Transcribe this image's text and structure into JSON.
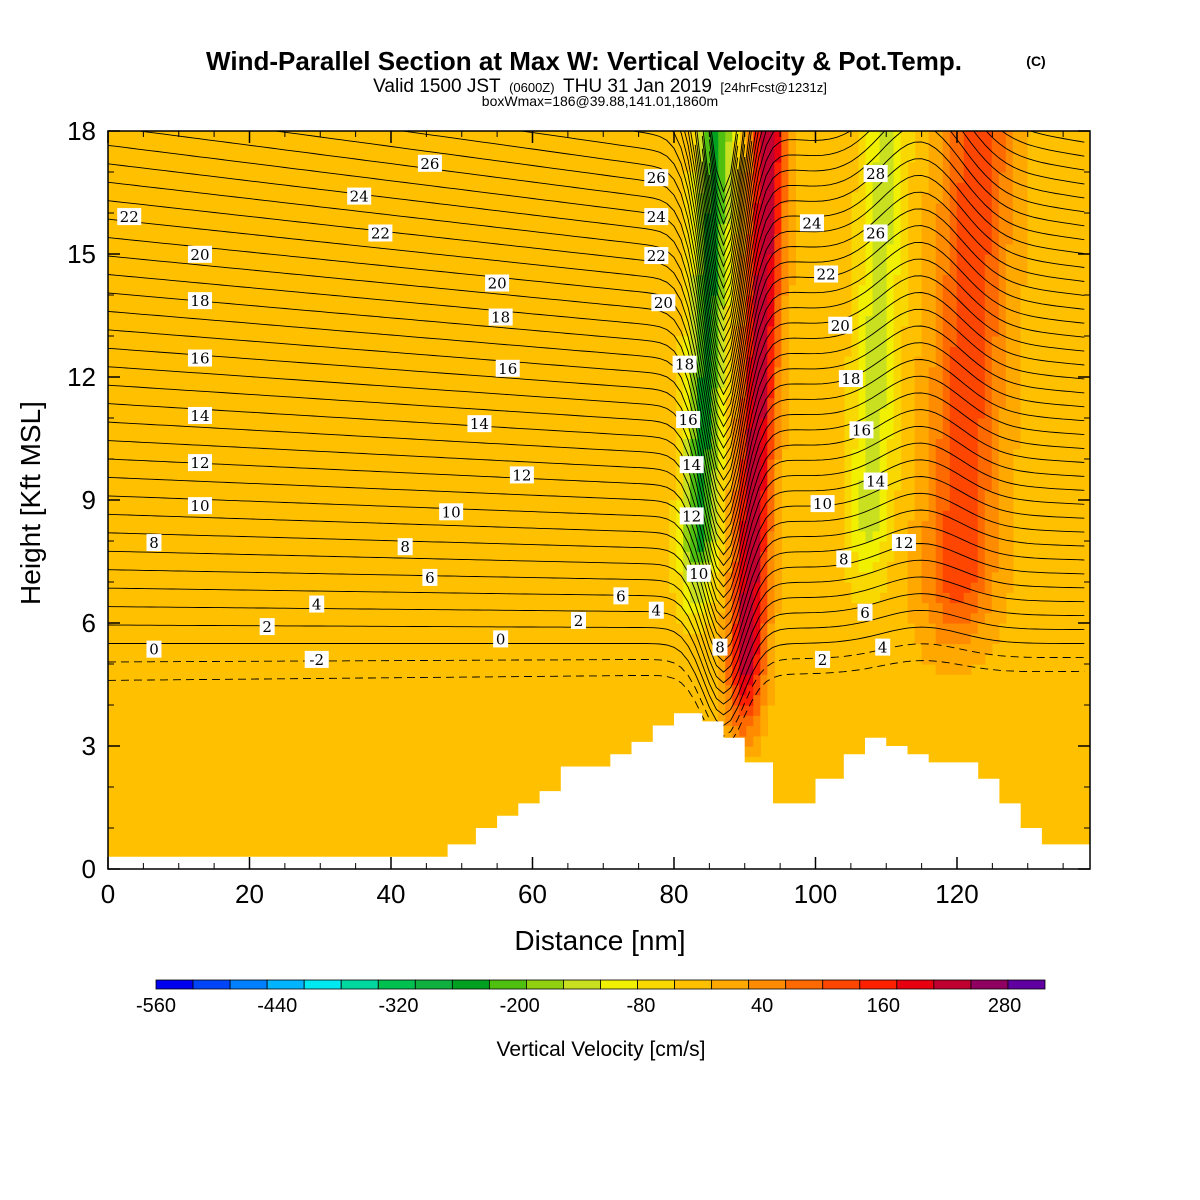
{
  "header": {
    "title": "Wind-Parallel Section at Max W: Vertical Velocity & Pot.Temp.",
    "copyright": "(C)",
    "valid_a": "Valid 1500 JST",
    "valid_utc": "(0600Z)",
    "valid_b": "THU 31 Jan 2019",
    "forecast": "[24hrFcst@1231z]",
    "box": "boxWmax=186@39.88,141.01,1860m"
  },
  "chart_data": {
    "type": "heatmap",
    "xlabel": "Distance [nm]",
    "ylabel": "Height [Kft MSL]",
    "xlim": [
      0,
      138.8
    ],
    "ylim": [
      0,
      18
    ],
    "x_ticks": [
      0,
      20,
      40,
      60,
      80,
      100,
      120
    ],
    "y_ticks": [
      0,
      3,
      6,
      9,
      12,
      15,
      18
    ],
    "colorbar": {
      "title": "Vertical Velocity [cm/s]",
      "tick_labels": [
        "-560",
        "-440",
        "-320",
        "-200",
        "-80",
        "40",
        "160",
        "280"
      ],
      "tick_values": [
        -560,
        -440,
        -320,
        -200,
        -80,
        40,
        160,
        280
      ],
      "min": -560,
      "max": 320,
      "bin_width": 40,
      "colors": [
        "#0000f0",
        "#0046f8",
        "#0080ff",
        "#00b4ff",
        "#00e8f0",
        "#00d8a0",
        "#00c050",
        "#10b040",
        "#00a020",
        "#50c010",
        "#90d010",
        "#c8e020",
        "#f0f000",
        "#f8d800",
        "#ffc000",
        "#ffa800",
        "#ff8c00",
        "#ff6a00",
        "#ff4600",
        "#ff2000",
        "#e80010",
        "#c00030",
        "#900060",
        "#6000a0"
      ]
    },
    "terrain_profile": {
      "distance": [
        0,
        48,
        48,
        52,
        52,
        55,
        55,
        58,
        58,
        61,
        61,
        64,
        64,
        71,
        71,
        74,
        74,
        77,
        77,
        80,
        80,
        84,
        84,
        87,
        87,
        90,
        90,
        94,
        94,
        100,
        100,
        104,
        104,
        107,
        107,
        110,
        110,
        113,
        113,
        116,
        116,
        123,
        123,
        126,
        126,
        129,
        129,
        132,
        132,
        138.8
      ],
      "height": [
        0.3,
        0.3,
        0.6,
        0.6,
        1.0,
        1.0,
        1.3,
        1.3,
        1.6,
        1.6,
        1.9,
        1.9,
        2.5,
        2.5,
        2.8,
        2.8,
        3.1,
        3.1,
        3.5,
        3.5,
        3.8,
        3.8,
        3.6,
        3.6,
        3.2,
        3.2,
        2.6,
        2.6,
        1.6,
        1.6,
        2.2,
        2.2,
        2.8,
        2.8,
        3.2,
        3.2,
        3.0,
        3.0,
        2.8,
        2.8,
        2.6,
        2.6,
        2.2,
        2.2,
        1.6,
        1.6,
        1.0,
        1.0,
        0.6,
        0.6
      ]
    },
    "vertical_velocity_features": [
      {
        "kind": "updraft",
        "x": 91.5,
        "y_top": 18,
        "y_bottom": 3.5,
        "half_width": 2.5,
        "peak": 300
      },
      {
        "kind": "updraft",
        "x": 121,
        "y_top": 17.5,
        "y_bottom": 5.5,
        "half_width": 5,
        "peak": 170
      },
      {
        "kind": "downdraft",
        "x": 84,
        "y_top": 18,
        "y_bottom": 6.5,
        "half_width": 2.5,
        "peak": -240
      },
      {
        "kind": "downdraft",
        "x": 108,
        "y_top": 17.5,
        "y_bottom": 7,
        "half_width": 3,
        "peak": -120
      }
    ],
    "theta_contours": {
      "unit": "deg C (labels)",
      "levels": [
        -2,
        0,
        2,
        4,
        6,
        8,
        10,
        12,
        14,
        16,
        18,
        20,
        22,
        24,
        26,
        28
      ],
      "labels": [
        {
          "text": "26",
          "x": 45.5,
          "y": 17.2
        },
        {
          "text": "24",
          "x": 35.5,
          "y": 16.4
        },
        {
          "text": "22",
          "x": 3.0,
          "y": 15.9
        },
        {
          "text": "22",
          "x": 38.5,
          "y": 15.5
        },
        {
          "text": "20",
          "x": 13.0,
          "y": 14.98
        },
        {
          "text": "20",
          "x": 55.0,
          "y": 14.28
        },
        {
          "text": "18",
          "x": 13.0,
          "y": 13.85
        },
        {
          "text": "18",
          "x": 55.5,
          "y": 13.45
        },
        {
          "text": "16",
          "x": 13.0,
          "y": 12.45
        },
        {
          "text": "16",
          "x": 56.5,
          "y": 12.2
        },
        {
          "text": "14",
          "x": 13.0,
          "y": 11.05
        },
        {
          "text": "14",
          "x": 52.5,
          "y": 10.85
        },
        {
          "text": "12",
          "x": 13.0,
          "y": 9.9
        },
        {
          "text": "12",
          "x": 58.5,
          "y": 9.6
        },
        {
          "text": "10",
          "x": 13.0,
          "y": 8.85
        },
        {
          "text": "10",
          "x": 48.5,
          "y": 8.7
        },
        {
          "text": "8",
          "x": 6.5,
          "y": 7.95
        },
        {
          "text": "8",
          "x": 42.0,
          "y": 7.85
        },
        {
          "text": "6",
          "x": 45.5,
          "y": 7.1
        },
        {
          "text": "4",
          "x": 29.5,
          "y": 6.45
        },
        {
          "text": "2",
          "x": 22.5,
          "y": 5.9
        },
        {
          "text": "0",
          "x": 6.5,
          "y": 5.35
        },
        {
          "text": "0",
          "x": 55.5,
          "y": 5.6
        },
        {
          "text": "-2",
          "x": 29.5,
          "y": 5.1
        },
        {
          "text": "2",
          "x": 66.5,
          "y": 6.05
        },
        {
          "text": "6",
          "x": 72.5,
          "y": 6.65
        },
        {
          "text": "4",
          "x": 77.5,
          "y": 6.3
        },
        {
          "text": "26",
          "x": 77.5,
          "y": 16.85
        },
        {
          "text": "24",
          "x": 77.5,
          "y": 15.9
        },
        {
          "text": "22",
          "x": 77.5,
          "y": 14.95
        },
        {
          "text": "20",
          "x": 78.5,
          "y": 13.8
        },
        {
          "text": "18",
          "x": 81.5,
          "y": 12.3
        },
        {
          "text": "16",
          "x": 82.0,
          "y": 10.95
        },
        {
          "text": "14",
          "x": 82.5,
          "y": 9.85
        },
        {
          "text": "12",
          "x": 82.5,
          "y": 8.6
        },
        {
          "text": "10",
          "x": 83.5,
          "y": 7.2
        },
        {
          "text": "8",
          "x": 86.5,
          "y": 5.4
        },
        {
          "text": "28",
          "x": 108.5,
          "y": 16.95
        },
        {
          "text": "26",
          "x": 108.5,
          "y": 15.5
        },
        {
          "text": "24",
          "x": 99.5,
          "y": 15.75
        },
        {
          "text": "22",
          "x": 101.5,
          "y": 14.5
        },
        {
          "text": "20",
          "x": 103.5,
          "y": 13.25
        },
        {
          "text": "18",
          "x": 105.0,
          "y": 11.95
        },
        {
          "text": "16",
          "x": 106.5,
          "y": 10.7
        },
        {
          "text": "14",
          "x": 108.5,
          "y": 9.45
        },
        {
          "text": "12",
          "x": 112.5,
          "y": 7.95
        },
        {
          "text": "10",
          "x": 101.0,
          "y": 8.9
        },
        {
          "text": "8",
          "x": 104.0,
          "y": 7.55
        },
        {
          "text": "6",
          "x": 107.0,
          "y": 6.25
        },
        {
          "text": "4",
          "x": 109.5,
          "y": 5.4
        },
        {
          "text": "2",
          "x": 101.0,
          "y": 5.1
        }
      ]
    }
  }
}
